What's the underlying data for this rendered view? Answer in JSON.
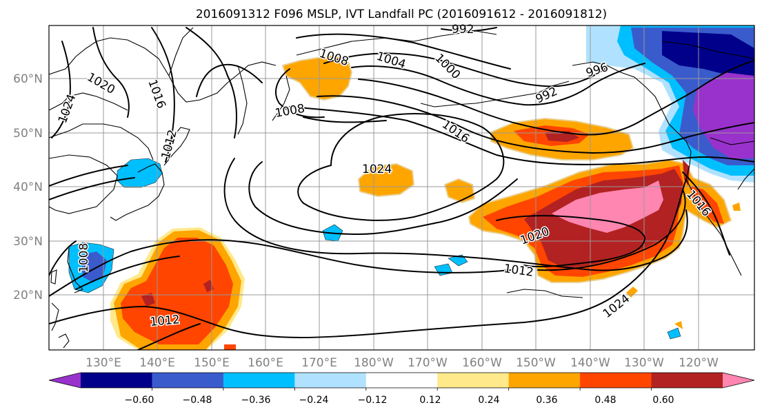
{
  "title": "2016091312 F096 MSLP, IVT Landfall PC (2016091612 - 2016091812)",
  "map": {
    "lat_labels": [
      "20°N",
      "30°N",
      "40°N",
      "50°N",
      "60°N"
    ],
    "lon_labels": [
      "130°E",
      "140°E",
      "150°E",
      "160°E",
      "170°E",
      "180°W",
      "170°W",
      "160°W",
      "150°W",
      "140°W",
      "130°W",
      "120°W"
    ],
    "contour_labels": [
      "992",
      "1008",
      "1004",
      "1000",
      "996",
      "992",
      "1020",
      "1016",
      "1024",
      "1008",
      "1016",
      "1012",
      "1024",
      "1020",
      "1012",
      "1016",
      "1008",
      "1012",
      "1024"
    ]
  },
  "colorbar": {
    "colors": [
      "#9932cc",
      "#00008b",
      "#3a5bcc",
      "#00bfff",
      "#b0e2ff",
      "#ffffff",
      "#ffe98a",
      "#ffa500",
      "#ff4500",
      "#b22222",
      "#ff86b0"
    ],
    "tick_labels": [
      "−0.60",
      "−0.48",
      "−0.36",
      "−0.24",
      "−0.12",
      "0.12",
      "0.24",
      "0.36",
      "0.48",
      "0.60"
    ]
  }
}
